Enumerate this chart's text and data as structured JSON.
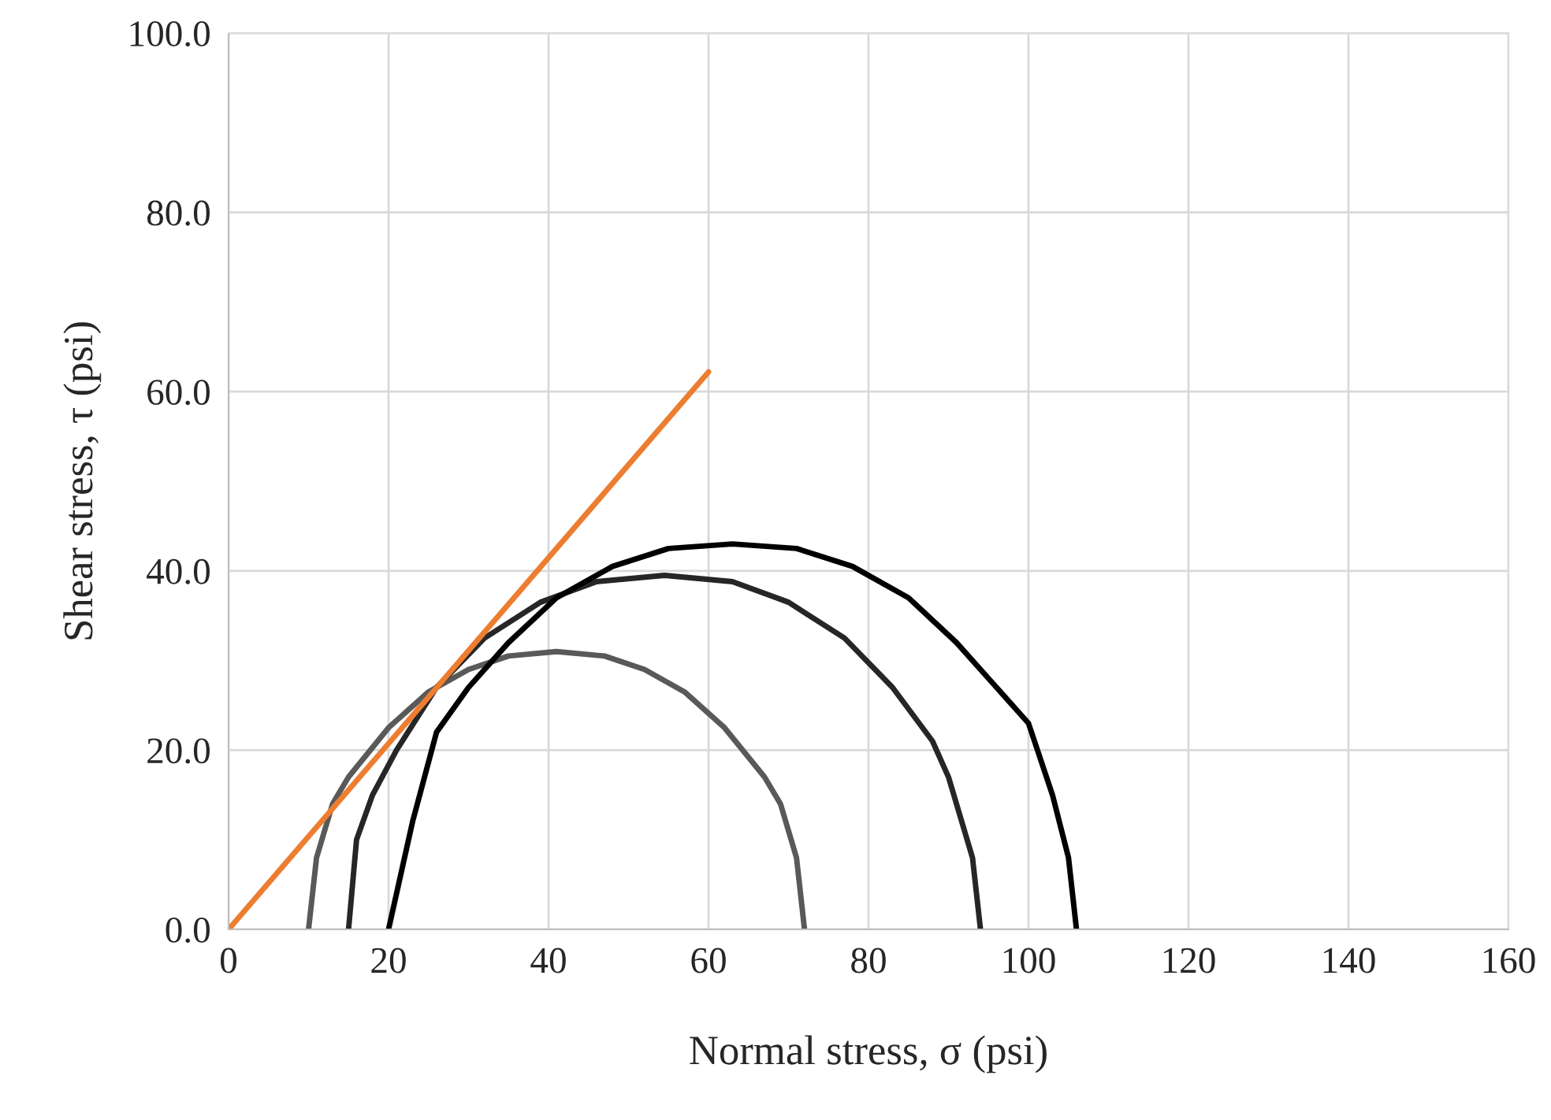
{
  "chart_data": {
    "type": "line",
    "xlabel": "Normal stress, σ (psi)",
    "ylabel": "Shear stress, τ (psi)",
    "xlim": [
      0,
      160
    ],
    "xticks": [
      0,
      20,
      40,
      60,
      80,
      100,
      120,
      140,
      160
    ],
    "ylim": [
      0,
      100
    ],
    "yticks": [
      {
        "value": 0,
        "label": "0.0"
      },
      {
        "value": 20,
        "label": "20.0"
      },
      {
        "value": 40,
        "label": "40.0"
      },
      {
        "value": 60,
        "label": "60.0"
      },
      {
        "value": 80,
        "label": "80.0"
      },
      {
        "value": 100,
        "label": "100.0"
      }
    ],
    "grid": true,
    "marker": "none",
    "line_style": "solid",
    "series": [
      {
        "color": "#595959",
        "x": [
          10,
          11,
          13,
          15,
          20,
          25,
          30,
          35,
          41,
          47,
          52,
          57,
          62,
          67,
          69,
          71,
          72
        ],
        "values": [
          0,
          8,
          14,
          17,
          22.5,
          26.5,
          29,
          30.5,
          31,
          30.5,
          29,
          26.5,
          22.5,
          17,
          14,
          8,
          0
        ]
      },
      {
        "color": "#262626",
        "x": [
          15,
          16,
          18,
          21,
          26,
          32,
          39,
          46,
          54.5,
          63,
          70,
          77,
          83,
          88,
          90,
          93,
          94
        ],
        "values": [
          0,
          10,
          15,
          20,
          27,
          32.5,
          36.5,
          38.8,
          39.5,
          38.8,
          36.5,
          32.5,
          27,
          21,
          17,
          8,
          0
        ]
      },
      {
        "color": "#000000",
        "x": [
          20,
          23,
          26,
          30,
          35,
          41,
          48,
          55,
          63,
          71,
          78,
          85,
          91,
          96,
          100,
          103,
          105,
          106
        ],
        "values": [
          0,
          12,
          22,
          27,
          32,
          37,
          40.5,
          42.5,
          43,
          42.5,
          40.5,
          37,
          32,
          27,
          23,
          15,
          8,
          0
        ]
      },
      {
        "color": "#ed7d31",
        "x": [
          0,
          60
        ],
        "values": [
          0,
          62.2
        ]
      }
    ]
  }
}
